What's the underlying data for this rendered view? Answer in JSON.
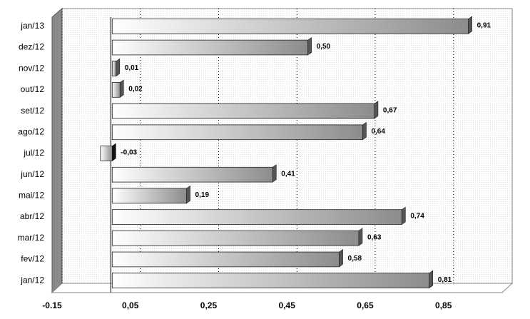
{
  "chart_data": {
    "type": "bar",
    "orientation": "horizontal",
    "categories": [
      "jan/12",
      "fev/12",
      "mar/12",
      "abr/12",
      "mai/12",
      "jun/12",
      "jul/12",
      "ago/12",
      "set/12",
      "out/12",
      "nov/12",
      "dez/12",
      "jan/13"
    ],
    "values": [
      0.81,
      0.58,
      0.63,
      0.74,
      0.19,
      0.41,
      -0.03,
      0.64,
      0.67,
      0.02,
      0.01,
      0.5,
      0.91
    ],
    "value_labels": [
      "0,81",
      "0,58",
      "0,63",
      "0,74",
      "0,19",
      "0,41",
      "-0,03",
      "0,64",
      "0,67",
      "0,02",
      "0,01",
      "0,50",
      "0,91"
    ],
    "color": "#a0a0a0",
    "xlim": [
      -0.15,
      1.0
    ],
    "xticks": [
      {
        "value": -0.15,
        "label": "-0.15"
      },
      {
        "value": 0.05,
        "label": "0,05"
      },
      {
        "value": 0.25,
        "label": "0,25"
      },
      {
        "value": 0.45,
        "label": "0,45"
      },
      {
        "value": 0.65,
        "label": "0,65"
      },
      {
        "value": 0.85,
        "label": "0,85"
      }
    ],
    "grid": true
  }
}
